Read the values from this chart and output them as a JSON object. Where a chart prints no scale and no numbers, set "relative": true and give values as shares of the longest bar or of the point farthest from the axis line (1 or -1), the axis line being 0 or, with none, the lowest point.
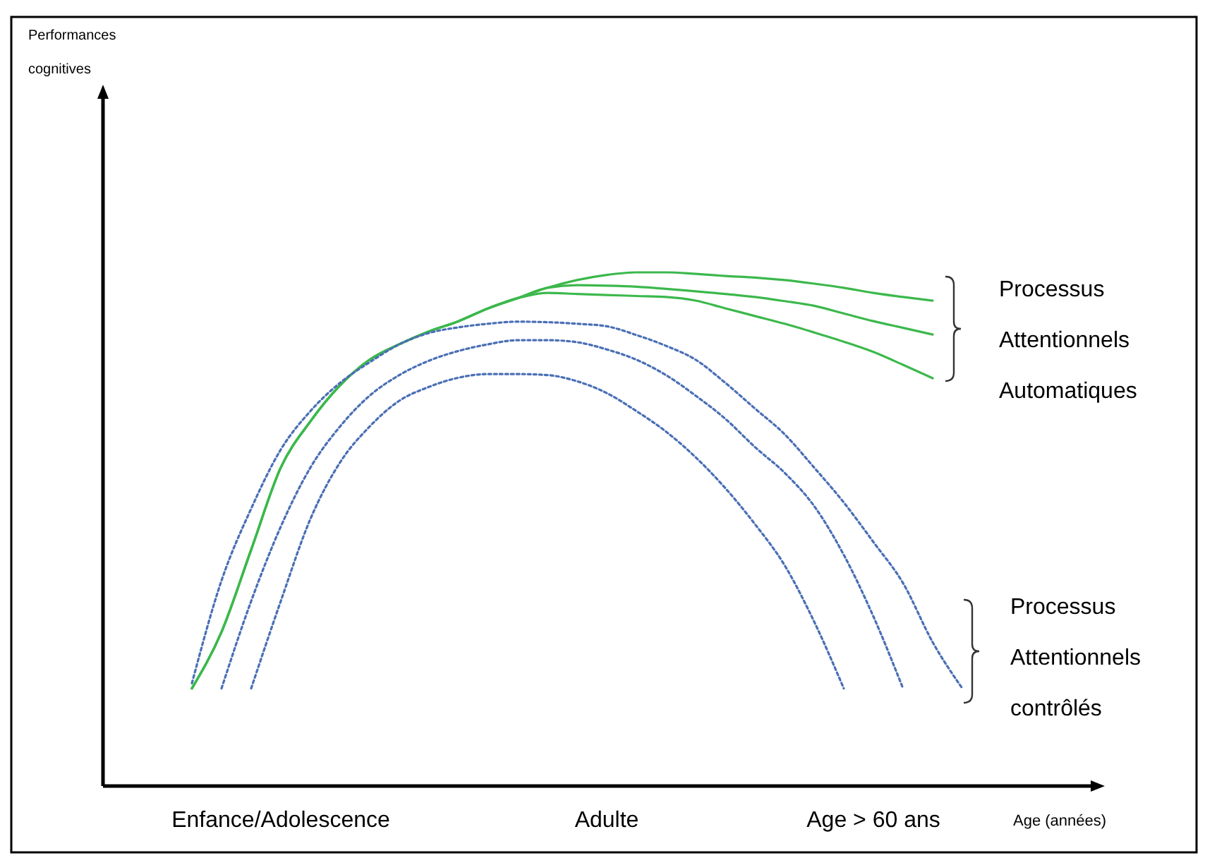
{
  "chart_data": {
    "type": "line",
    "relative": true,
    "ylabel": "Performances cognitives",
    "xlabel": "Age (années)",
    "categories": [
      null,
      null,
      null,
      null,
      null,
      null,
      "Enfance/Adolescence",
      null,
      null,
      null,
      null,
      null,
      null,
      null,
      null,
      null,
      null,
      "Adulte",
      null,
      null,
      null,
      null,
      null,
      null,
      null,
      null,
      "Age > 60 ans",
      null,
      null,
      null,
      null,
      null,
      null,
      null
    ],
    "tick_labels": "x",
    "marker": "none",
    "annotations": [
      "Processus Attentionnels Automatiques",
      "Processus Attentionnels contrôlés"
    ],
    "series": [
      {
        "color": "#3cb84c",
        "line_style": "solid",
        "values": [
          null,
          null,
          null,
          0.19,
          0.3,
          0.46,
          0.62,
          0.71,
          0.78,
          0.83,
          0.86,
          0.885,
          0.905,
          0.93,
          0.95,
          0.97,
          0.985,
          0.995,
          1,
          1,
          0.997,
          0.993,
          0.99,
          0.985,
          0.978,
          0.97,
          0.96,
          0.952,
          0.945,
          null,
          null,
          null,
          null,
          null
        ]
      },
      {
        "color": "#3cb84c",
        "line_style": "solid",
        "values": [
          null,
          null,
          null,
          0.19,
          0.3,
          0.46,
          0.62,
          0.71,
          0.78,
          0.83,
          0.86,
          0.885,
          0.905,
          0.93,
          0.95,
          0.97,
          0.975,
          0.974,
          0.972,
          0.968,
          0.963,
          0.958,
          0.952,
          0.944,
          0.935,
          0.92,
          0.905,
          0.892,
          0.879,
          null,
          null,
          null,
          null,
          null
        ]
      },
      {
        "color": "#3cb84c",
        "line_style": "solid",
        "values": [
          null,
          null,
          null,
          0.19,
          0.3,
          0.46,
          0.62,
          0.71,
          0.78,
          0.83,
          0.86,
          0.885,
          0.905,
          0.93,
          0.95,
          0.96,
          0.958,
          0.956,
          0.954,
          0.952,
          0.945,
          0.93,
          0.915,
          0.9,
          0.883,
          0.865,
          0.845,
          0.82,
          0.794,
          null,
          null,
          null,
          null,
          null
        ]
      },
      {
        "color": "#4a6fb5",
        "line_style": "dotted",
        "values": [
          null,
          null,
          null,
          0.2,
          0.4,
          0.54,
          0.655,
          0.73,
          0.785,
          0.825,
          0.86,
          0.882,
          0.893,
          0.9,
          0.904,
          0.903,
          0.9,
          0.895,
          0.878,
          0.857,
          0.83,
          0.785,
          0.735,
          0.685,
          0.62,
          0.552,
          0.475,
          0.395,
          0.28,
          0.19,
          null,
          null,
          null,
          null
        ]
      },
      {
        "color": "#4a6fb5",
        "line_style": "dotted",
        "values": [
          null,
          null,
          null,
          null,
          0.19,
          0.36,
          0.505,
          0.62,
          0.7,
          0.76,
          0.8,
          0.828,
          0.847,
          0.86,
          0.868,
          0.868,
          0.864,
          0.85,
          0.83,
          0.8,
          0.76,
          0.715,
          0.66,
          0.61,
          0.545,
          0.45,
          0.33,
          0.19,
          null,
          null,
          null,
          null,
          null,
          null
        ]
      },
      {
        "color": "#4a6fb5",
        "line_style": "dotted",
        "values": [
          null,
          null,
          null,
          null,
          null,
          0.19,
          0.36,
          0.52,
          0.63,
          0.7,
          0.75,
          0.777,
          0.795,
          0.802,
          0.802,
          0.8,
          0.788,
          0.765,
          0.73,
          0.69,
          0.64,
          0.58,
          0.51,
          0.43,
          0.32,
          0.19,
          null,
          null,
          null,
          null,
          null,
          null,
          null,
          null
        ]
      }
    ]
  }
}
